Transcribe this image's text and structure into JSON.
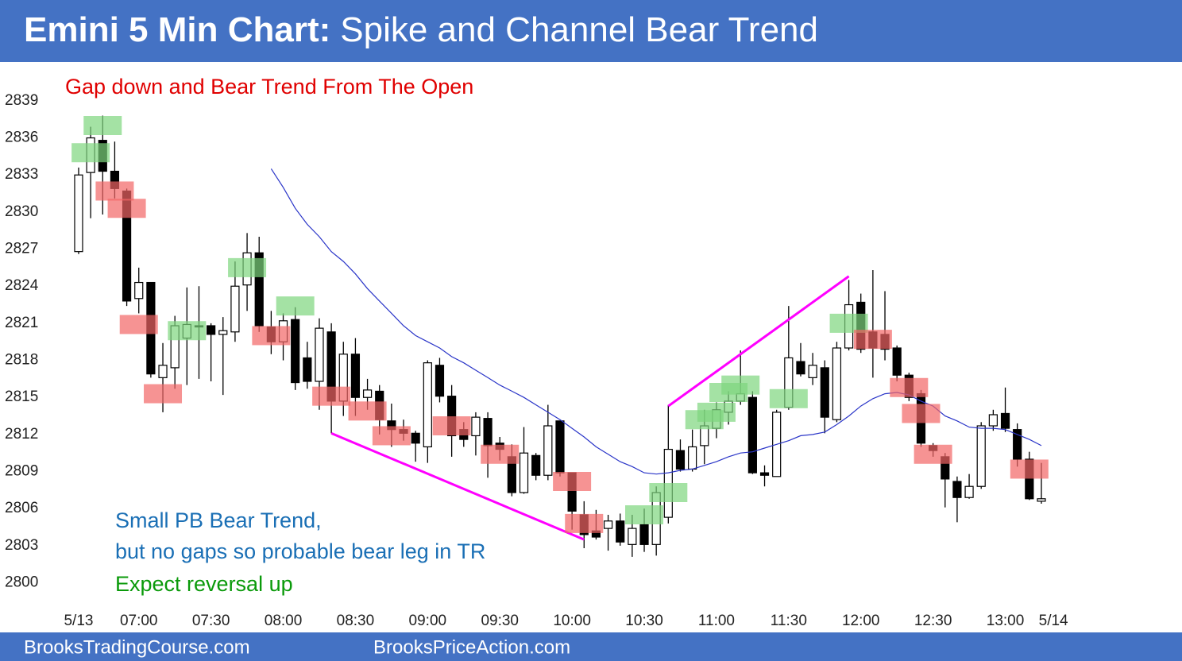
{
  "chart_data": {
    "type": "candlestick",
    "title": "Emini 5 Min Chart:",
    "subtitle": "Spike and Channel Bear Trend",
    "annotations": [
      {
        "text": "Gap down and Bear Trend From The Open",
        "color": "#e00000"
      },
      {
        "text": "Small PB Bear Trend,",
        "color": "#1a6fb5"
      },
      {
        "text": "but no gaps so probable bear leg in TR",
        "color": "#1a6fb5"
      },
      {
        "text": "Expect reversal up",
        "color": "#0a9a0a"
      }
    ],
    "footer": [
      "BrooksTradingCourse.com",
      "BrooksPriceAction.com"
    ],
    "categories": [
      "5/13",
      null,
      null,
      null,
      null,
      "07:00",
      null,
      null,
      null,
      null,
      null,
      "07:30",
      null,
      null,
      null,
      null,
      null,
      "08:00",
      null,
      null,
      null,
      null,
      null,
      "08:30",
      null,
      null,
      null,
      null,
      null,
      "09:00",
      null,
      null,
      null,
      null,
      null,
      "09:30",
      null,
      null,
      null,
      null,
      null,
      "10:00",
      null,
      null,
      null,
      null,
      null,
      "10:30",
      null,
      null,
      null,
      null,
      null,
      "11:00",
      null,
      null,
      null,
      null,
      null,
      "11:30",
      null,
      null,
      null,
      null,
      null,
      "12:00",
      null,
      null,
      null,
      null,
      null,
      "12:30",
      null,
      null,
      null,
      null,
      null,
      "13:00",
      null,
      null,
      null,
      "5/14"
    ],
    "open": [
      2826.8,
      2833.2,
      2835.8,
      2833.3,
      2831.7,
      2823,
      2824.3,
      2816.6,
      2817.4,
      2819.8,
      2820.8,
      2820.8,
      2820.1,
      2820.3,
      2824.1,
      2826.7,
      2820.7,
      2819.5,
      2821.3,
      2818.2,
      2816.3,
      2820.3,
      2814.7,
      2818.5,
      2815,
      2815.5,
      2813.1,
      2812.4,
      2812.1,
      2811,
      2817.6,
      2815.1,
      2812.4,
      2811.9,
      2813.3,
      2811.3,
      2810.2,
      2807.3,
      2810.3,
      2808.7,
      2813.1,
      2808.9,
      2805.5,
      2804.2,
      2804.4,
      2805,
      2803.1,
      2804.7,
      2803.1,
      2805.3,
      2810.7,
      2809.2,
      2811.1,
      2812.5,
      2813.8,
      2814.7,
      2815,
      2808.9,
      2808.6,
      2814.2,
      2817.9,
      2816.6,
      2817.4,
      2813.2,
      2819,
      2822.7,
      2820.3,
      2820.1,
      2819,
      2816.8,
      2815.3,
      2811.1,
      2810.2,
      2808.2,
      2806.9,
      2807.8,
      2812.7,
      2813.7,
      2812.4,
      2810,
      2806.6,
      null
    ],
    "high": [
      2833.6,
      2836.9,
      2837.8,
      2835.7,
      2831.9,
      2825.5,
      2824.3,
      2819.4,
      2821.6,
      2823.9,
      2824,
      2821,
      2821.5,
      2826,
      2828.3,
      2828,
      2822,
      2821.8,
      2822.3,
      2819.5,
      2821.4,
      2821,
      2819.5,
      2819.8,
      2816.5,
      2816,
      2814.5,
      2813.2,
      2812.3,
      2818,
      2818.2,
      2816,
      2813,
      2813.8,
      2813.8,
      2811.8,
      2811.2,
      2812.6,
      2810.5,
      2814.4,
      2813.1,
      2808.9,
      2806.6,
      2805.9,
      2805.5,
      2805.6,
      2805.5,
      2806,
      2807.8,
      2814.4,
      2811.6,
      2812.4,
      2814,
      2814.6,
      2815.5,
      2818.8,
      2815.5,
      2809.5,
      2814,
      2822.4,
      2819.4,
      2818.6,
      2818,
      2819.5,
      2824.5,
      2823.4,
      2825.3,
      2823.6,
      2819.2,
      2817,
      2815.6,
      2811.3,
      2810.5,
      2808.6,
      2808.8,
      2813,
      2814,
      2815.8,
      2812.9,
      2810.6,
      2809.7,
      null
    ],
    "low": [
      2826.6,
      2829.5,
      2829.8,
      2831.1,
      2822.4,
      2821.8,
      2816.6,
      2813.8,
      2815.7,
      2816,
      2816.5,
      2816.3,
      2815.2,
      2819.5,
      2822,
      2820.3,
      2818.5,
      2818,
      2815.6,
      2815.7,
      2814,
      2812.1,
      2813.5,
      2813.5,
      2814,
      2812,
      2811,
      2811.5,
      2809.8,
      2809.7,
      2814.6,
      2810.2,
      2811,
      2810.3,
      2808.5,
      2809.9,
      2807,
      2807.2,
      2808.3,
      2808.3,
      2808.6,
      2804.3,
      2802.8,
      2803.5,
      2802.6,
      2803,
      2802.1,
      2802.5,
      2802.2,
      2804.8,
      2809,
      2809,
      2809.6,
      2811.7,
      2812.8,
      2814.4,
      2808.8,
      2807.8,
      2808.6,
      2814,
      2816.7,
      2816,
      2812.1,
      2813,
      2818.8,
      2818.6,
      2816.6,
      2818,
      2816.3,
      2814.7,
      2811,
      2810.2,
      2806.1,
      2804.9,
      2806.8,
      2807.6,
      2812.3,
      2812.2,
      2809.4,
      2806.7,
      2806.4,
      null
    ],
    "close": [
      2833,
      2836,
      2833.3,
      2831.9,
      2822.8,
      2824.3,
      2816.9,
      2817.6,
      2820.8,
      2820.9,
      2820.7,
      2820.1,
      2820.4,
      2824,
      2826.7,
      2820.8,
      2819.5,
      2821.2,
      2816.2,
      2816.3,
      2820.6,
      2814.7,
      2818.5,
      2815,
      2815.6,
      2813.2,
      2812.4,
      2812.1,
      2811.3,
      2817.8,
      2815.1,
      2811.9,
      2811.6,
      2813.4,
      2811.1,
      2810.8,
      2807.3,
      2810.5,
      2808.7,
      2812.7,
      2808.9,
      2805.8,
      2803.9,
      2803.7,
      2805,
      2803.3,
      2804.4,
      2803.1,
      2807.3,
      2810.8,
      2809.2,
      2811,
      2812.7,
      2814,
      2814.7,
      2815.3,
      2808.9,
      2808.7,
      2813.8,
      2818.2,
      2816.9,
      2817.6,
      2813.4,
      2819,
      2822.5,
      2818.9,
      2819,
      2818.9,
      2816.8,
      2815,
      2811.3,
      2810.7,
      2808.4,
      2806.9,
      2807.8,
      2812.7,
      2813.6,
      2812.5,
      2810,
      2806.8,
      2806.8,
      null
    ],
    "ema": {
      "color": "#2a35c8",
      "values": [
        null,
        null,
        null,
        null,
        null,
        null,
        null,
        null,
        null,
        null,
        null,
        null,
        null,
        null,
        null,
        null,
        2833.5,
        2832,
        2830.3,
        2829,
        2828,
        2826.8,
        2826,
        2825,
        2823.8,
        2822.8,
        2821.8,
        2820.8,
        2820,
        2819.5,
        2819,
        2818.3,
        2817.8,
        2817.2,
        2816.6,
        2816,
        2815.5,
        2815,
        2814.4,
        2813.8,
        2813.2,
        2812.5,
        2811.8,
        2811,
        2810.4,
        2809.8,
        2809.4,
        2808.9,
        2808.8,
        2808.9,
        2809.1,
        2809.2,
        2809.5,
        2809.8,
        2810.2,
        2810.5,
        2810.6,
        2810.9,
        2811.2,
        2811.5,
        2811.9,
        2812,
        2812.2,
        2812.8,
        2813.5,
        2814.3,
        2814.9,
        2815.3,
        2815.4,
        2815.2,
        2814.7,
        2814.3,
        2813.5,
        2813.1,
        2812.6,
        2812.5,
        2812.5,
        2812.4,
        2812,
        2811.6,
        2811.1,
        null
      ]
    },
    "trend_lines": [
      {
        "color": "#ff00ff",
        "x": [
          21,
          42
        ],
        "y": [
          2812.1,
          2803.5
        ]
      },
      {
        "color": "#ff00ff",
        "x": [
          49,
          64
        ],
        "y": [
          2814.3,
          2824.8
        ]
      }
    ],
    "highlights": [
      {
        "bar": 1,
        "level": 2834.8,
        "color": "#7ed67e"
      },
      {
        "bar": 2,
        "level": 2837,
        "color": "#7ed67e"
      },
      {
        "bar": 9,
        "level": 2820.4,
        "color": "#7ed67e"
      },
      {
        "bar": 14,
        "level": 2825.5,
        "color": "#7ed67e"
      },
      {
        "bar": 18,
        "level": 2822.4,
        "color": "#7ed67e"
      },
      {
        "bar": 47,
        "level": 2805.5,
        "color": "#7ed67e"
      },
      {
        "bar": 49,
        "level": 2807.3,
        "color": "#7ed67e"
      },
      {
        "bar": 52,
        "level": 2813.2,
        "color": "#7ed67e"
      },
      {
        "bar": 53,
        "level": 2813.8,
        "color": "#7ed67e"
      },
      {
        "bar": 54,
        "level": 2815.4,
        "color": "#7ed67e"
      },
      {
        "bar": 55,
        "level": 2816,
        "color": "#7ed67e"
      },
      {
        "bar": 59,
        "level": 2814.9,
        "color": "#7ed67e"
      },
      {
        "bar": 64,
        "level": 2821,
        "color": "#7ed67e"
      },
      {
        "bar": 3,
        "level": 2831.7,
        "color": "#f26565"
      },
      {
        "bar": 4,
        "level": 2830.3,
        "color": "#f26565"
      },
      {
        "bar": 5,
        "level": 2820.9,
        "color": "#f26565"
      },
      {
        "bar": 7,
        "level": 2815.3,
        "color": "#f26565"
      },
      {
        "bar": 16,
        "level": 2820,
        "color": "#f26565"
      },
      {
        "bar": 21,
        "level": 2815.1,
        "color": "#f26565"
      },
      {
        "bar": 24,
        "level": 2813.9,
        "color": "#f26565"
      },
      {
        "bar": 26,
        "level": 2811.9,
        "color": "#f26565"
      },
      {
        "bar": 31,
        "level": 2812.7,
        "color": "#f26565"
      },
      {
        "bar": 35,
        "level": 2810.4,
        "color": "#f26565"
      },
      {
        "bar": 41,
        "level": 2808.2,
        "color": "#f26565"
      },
      {
        "bar": 42,
        "level": 2804.8,
        "color": "#f26565"
      },
      {
        "bar": 66,
        "level": 2819.7,
        "color": "#f26565"
      },
      {
        "bar": 69,
        "level": 2815.8,
        "color": "#f26565"
      },
      {
        "bar": 70,
        "level": 2813.7,
        "color": "#f26565"
      },
      {
        "bar": 71,
        "level": 2810.4,
        "color": "#f26565"
      },
      {
        "bar": 79,
        "level": 2809.2,
        "color": "#f26565"
      }
    ],
    "ylim": [
      2798.3,
      2841.5
    ],
    "yticks": [
      2800,
      2803,
      2806,
      2809,
      2812,
      2815,
      2818,
      2821,
      2824,
      2827,
      2830,
      2833,
      2836,
      2839
    ]
  }
}
